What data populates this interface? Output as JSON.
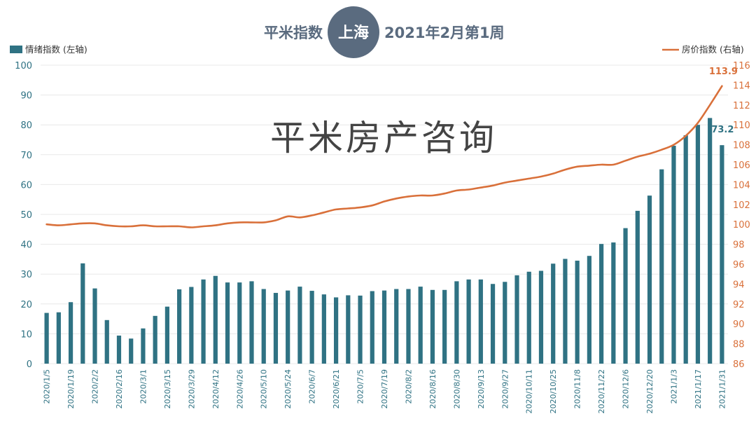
{
  "header": {
    "title_left": "平米指数",
    "city_badge": "上海",
    "title_right": "2021年2月第1周"
  },
  "watermark": "平米房产咨询",
  "colors": {
    "bar": "#2f7283",
    "line": "#d9703a",
    "badge": "#5a6b7f",
    "grid": "#e8e8e8"
  },
  "chart_data": {
    "type": "bar",
    "legend": {
      "bar": "情绪指数 (左轴)",
      "line": "房价指数 (右轴)"
    },
    "x": [
      "2020/1/5",
      "2020/1/12",
      "2020/1/19",
      "2020/1/26",
      "2020/2/2",
      "2020/2/9",
      "2020/2/16",
      "2020/2/23",
      "2020/3/1",
      "2020/3/8",
      "2020/3/15",
      "2020/3/22",
      "2020/3/29",
      "2020/4/5",
      "2020/4/12",
      "2020/4/19",
      "2020/4/26",
      "2020/5/3",
      "2020/5/10",
      "2020/5/17",
      "2020/5/24",
      "2020/5/31",
      "2020/6/7",
      "2020/6/14",
      "2020/6/21",
      "2020/6/28",
      "2020/7/5",
      "2020/7/12",
      "2020/7/19",
      "2020/7/26",
      "2020/8/2",
      "2020/8/9",
      "2020/8/16",
      "2020/8/23",
      "2020/8/30",
      "2020/9/6",
      "2020/9/13",
      "2020/9/20",
      "2020/9/27",
      "2020/10/4",
      "2020/10/11",
      "2020/10/18",
      "2020/10/25",
      "2020/11/1",
      "2020/11/8",
      "2020/11/15",
      "2020/11/22",
      "2020/11/29",
      "2020/12/6",
      "2020/12/13",
      "2020/12/20",
      "2020/12/27",
      "2021/1/3",
      "2021/1/10",
      "2021/1/17",
      "2021/1/24",
      "2021/1/31"
    ],
    "x_tick_labels": [
      "2020/1/5",
      "2020/1/19",
      "2020/2/2",
      "2020/2/16",
      "2020/3/1",
      "2020/3/15",
      "2020/3/29",
      "2020/4/12",
      "2020/4/26",
      "2020/5/10",
      "2020/5/24",
      "2020/6/7",
      "2020/6/21",
      "2020/7/5",
      "2020/7/19",
      "2020/8/2",
      "2020/8/16",
      "2020/8/30",
      "2020/9/13",
      "2020/9/27",
      "2020/10/11",
      "2020/10/25",
      "2020/11/8",
      "2020/11/22",
      "2020/12/6",
      "2020/12/20",
      "2021/1/3",
      "2021/1/17",
      "2021/1/31"
    ],
    "series": [
      {
        "name": "情绪指数 (左轴)",
        "type": "bar",
        "axis": "left",
        "values": [
          17,
          17.2,
          20.6,
          33.6,
          25.2,
          14.6,
          9.4,
          8.4,
          11.8,
          16,
          19.1,
          24.9,
          25.7,
          28.2,
          29.4,
          27.2,
          27.2,
          27.6,
          25,
          23.7,
          24.5,
          25.8,
          24.4,
          23.2,
          22.2,
          22.9,
          22.8,
          24.3,
          24.5,
          25,
          25,
          25.8,
          24.7,
          24.7,
          27.6,
          28.2,
          28.2,
          26.7,
          27.4,
          29.6,
          30.8,
          31.1,
          33.5,
          35.1,
          34.5,
          36.1,
          40.1,
          40.6,
          45.4,
          51.2,
          56.3,
          65.1,
          73,
          76.5,
          80,
          82.3,
          73.2
        ]
      },
      {
        "name": "房价指数 (右轴)",
        "type": "line",
        "axis": "right",
        "values": [
          100,
          99.9,
          100,
          100.1,
          100.1,
          99.9,
          99.8,
          99.8,
          99.9,
          99.8,
          99.8,
          99.8,
          99.7,
          99.8,
          99.9,
          100.1,
          100.2,
          100.2,
          100.2,
          100.4,
          100.8,
          100.7,
          100.9,
          101.2,
          101.5,
          101.6,
          101.7,
          101.9,
          102.3,
          102.6,
          102.8,
          102.9,
          102.9,
          103.1,
          103.4,
          103.5,
          103.7,
          103.9,
          104.2,
          104.4,
          104.6,
          104.8,
          105.1,
          105.5,
          105.8,
          105.9,
          106,
          106,
          106.4,
          106.8,
          107.1,
          107.5,
          108,
          108.9,
          110.2,
          112,
          113.9
        ]
      }
    ],
    "y_left": {
      "min": 0,
      "max": 100,
      "step": 10
    },
    "y_right": {
      "min": 86,
      "max": 116,
      "step": 2
    },
    "annotations": {
      "last_bar": "73.2",
      "last_line": "113.9"
    },
    "grid": true,
    "legend_placement": "top"
  }
}
